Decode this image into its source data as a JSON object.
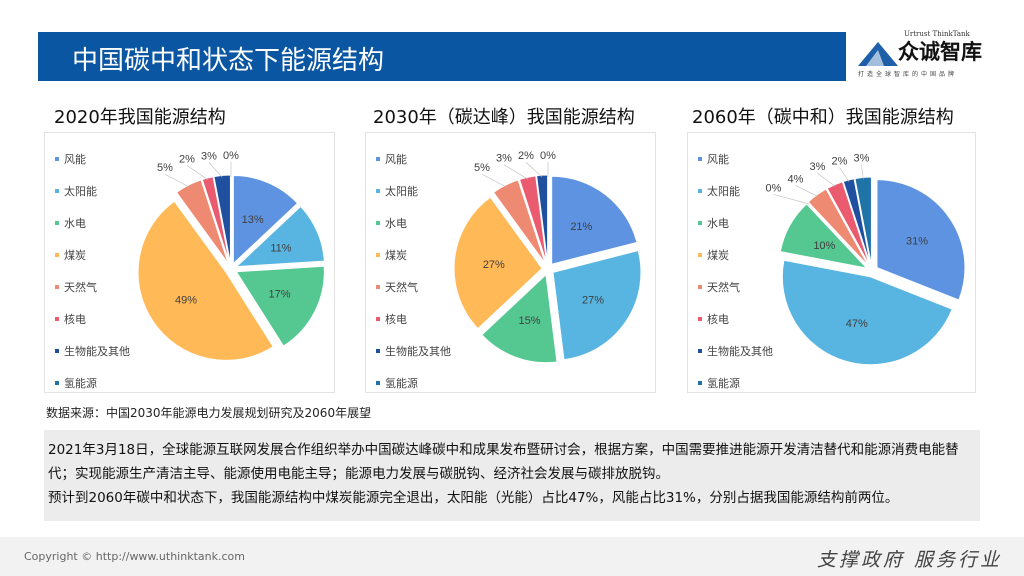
{
  "title": "中国碳中和状态下能源结构",
  "logo": {
    "en": "Urtrust ThinkTank",
    "cn": "众诚智库",
    "slogan": "打造全球智库的中国品牌"
  },
  "legend": [
    "风能",
    "太阳能",
    "水电",
    "煤炭",
    "天然气",
    "核电",
    "生物能及其他",
    "氢能源"
  ],
  "colors": [
    "#5e93e2",
    "#58b5e2",
    "#55c892",
    "#ffb957",
    "#ef8a72",
    "#ea5b70",
    "#1f4f9f",
    "#1f73a6"
  ],
  "chart_data": [
    {
      "type": "pie",
      "title": "2020年我国能源结构",
      "categories": [
        "风能",
        "太阳能",
        "水电",
        "煤炭",
        "天然气",
        "核电",
        "生物能及其他",
        "氢能源"
      ],
      "values": [
        13,
        11,
        17,
        49,
        5,
        2,
        3,
        0
      ],
      "legend_position": "left"
    },
    {
      "type": "pie",
      "title": "2030年（碳达峰）我国能源结构",
      "categories": [
        "风能",
        "太阳能",
        "水电",
        "煤炭",
        "天然气",
        "核电",
        "生物能及其他",
        "氢能源"
      ],
      "values": [
        21,
        27,
        15,
        27,
        5,
        3,
        2,
        0
      ],
      "legend_position": "left"
    },
    {
      "type": "pie",
      "title": "2060年（碳中和）我国能源结构",
      "categories": [
        "风能",
        "太阳能",
        "水电",
        "煤炭",
        "天然气",
        "核电",
        "生物能及其他",
        "氢能源"
      ],
      "values": [
        31,
        47,
        10,
        0,
        4,
        3,
        2,
        3
      ],
      "legend_position": "left"
    }
  ],
  "source": "数据来源：中国2030年能源电力发展规划研究及2060年展望",
  "note": [
    "2021年3月18日，全球能源互联网发展合作组织举办中国碳达峰碳中和成果发布暨研讨会，根据方案，中国需要推进能源开发清洁替代和能源消费电能替代；实现能源生产清洁主导、能源使用电能主导；能源电力发展与碳脱钩、经济社会发展与碳排放脱钩。",
    "预计到2060年碳中和状态下，我国能源结构中煤炭能源完全退出，太阳能（光能）占比47%，风能占比31%，分别占据我国能源结构前两位。"
  ],
  "footer": {
    "copyright": "Copyright © http://www.uthinktank.com",
    "slogan": "支撑政府 服务行业"
  }
}
